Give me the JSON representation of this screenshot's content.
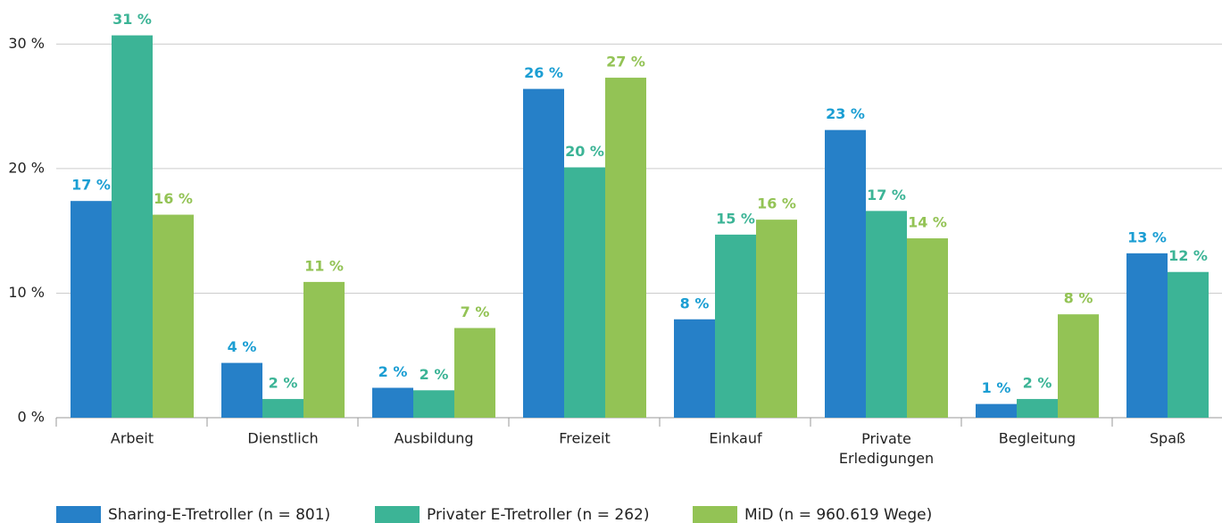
{
  "chart_data": {
    "type": "bar",
    "categories": [
      "Arbeit",
      "Dienstlich",
      "Ausbildung",
      "Freizeit",
      "Einkauf",
      "Private Erledigungen",
      "Begleitung",
      "Spaß"
    ],
    "series": [
      {
        "name": "Sharing-E-Tretroller (n = 801)",
        "color": "#2680c8",
        "label_color": "#1b9ed3",
        "values": [
          17.4,
          4.4,
          2.4,
          26.4,
          7.9,
          23.1,
          1.1,
          13.2
        ],
        "value_labels": [
          "17 %",
          "4 %",
          "2 %",
          "26 %",
          "8 %",
          "23 %",
          "1 %",
          "13 %"
        ]
      },
      {
        "name": "Privater E-Tretroller (n = 262)",
        "color": "#3cb496",
        "label_color": "#3cb496",
        "values": [
          30.7,
          1.5,
          2.2,
          20.1,
          14.7,
          16.6,
          1.5,
          11.7
        ],
        "value_labels": [
          "31 %",
          "2 %",
          "2 %",
          "20 %",
          "15 %",
          "17 %",
          "2 %",
          "12 %"
        ]
      },
      {
        "name": "MiD (n = 960.619 Wege)",
        "color": "#93c355",
        "label_color": "#93c355",
        "values": [
          16.3,
          10.9,
          7.2,
          27.3,
          15.9,
          14.4,
          8.3,
          null
        ],
        "value_labels": [
          "16 %",
          "11 %",
          "7 %",
          "27 %",
          "16 %",
          "14 %",
          "8 %",
          null
        ]
      }
    ],
    "ylim": [
      0,
      30.6
    ],
    "yticks": [
      {
        "value": 0,
        "label": "0 %"
      },
      {
        "value": 10,
        "label": "10 %"
      },
      {
        "value": 20,
        "label": "20 %"
      },
      {
        "value": 30,
        "label": "30 %"
      }
    ],
    "grid": true,
    "legend": "bottom"
  }
}
